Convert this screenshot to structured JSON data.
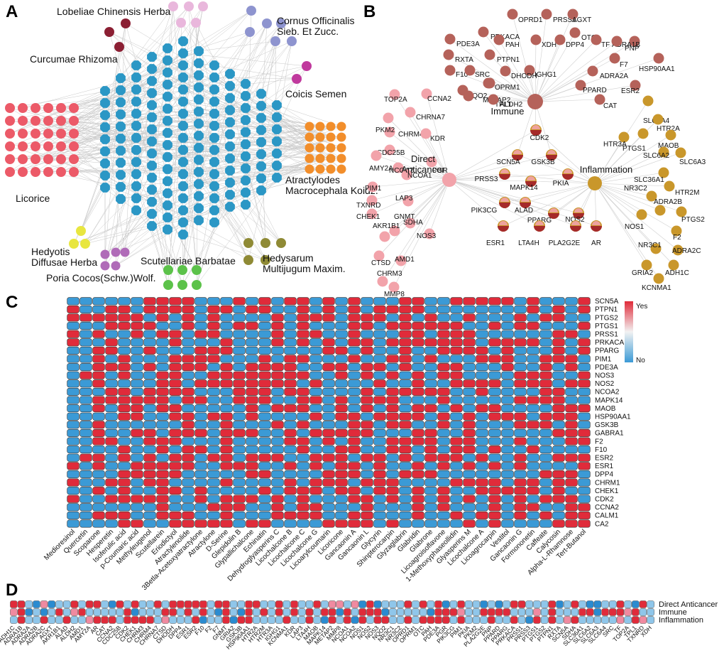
{
  "panels": {
    "A": "A",
    "B": "B",
    "C": "C",
    "D": "D"
  },
  "panelA": {
    "herbs": [
      {
        "key": "licorice",
        "label_lines": [
          "Licorice"
        ],
        "color": "#ec5a68"
      },
      {
        "key": "curcumae",
        "label_lines": [
          "Curcumae Rhizoma"
        ],
        "color": "#8b1f33"
      },
      {
        "key": "lobeliae",
        "label_lines": [
          "Lobeliae Chinensis Herba"
        ],
        "color": "#e9b7dc"
      },
      {
        "key": "cornus",
        "label_lines": [
          "Cornus Officinalis",
          "Sieb. Et Zucc."
        ],
        "color": "#8e94cf"
      },
      {
        "key": "coicis",
        "label_lines": [
          "Coicis Semen"
        ],
        "color": "#c0399d"
      },
      {
        "key": "atractylodes",
        "label_lines": [
          "Atractylodes",
          "Macrocephala Koidz."
        ],
        "color": "#f28e2b"
      },
      {
        "key": "hedysarum",
        "label_lines": [
          "Hedysarum",
          "Multijugum Maxim."
        ],
        "color": "#8f8a35"
      },
      {
        "key": "scutellariae",
        "label_lines": [
          "Scutellariae Barbatae"
        ],
        "color": "#5cc24a"
      },
      {
        "key": "poria",
        "label_lines": [
          "Poria Cocos(Schw.)Wolf."
        ],
        "color": "#b06bb8"
      },
      {
        "key": "hedyotis",
        "label_lines": [
          "Hedyotis",
          "Diffusae Herba"
        ],
        "color": "#e8e640"
      }
    ],
    "compound_color": "#2b97c5"
  },
  "panelB": {
    "immune": {
      "label": "Immune",
      "color": "#b5625a",
      "targets": [
        "OPRD1",
        "PRSS1",
        "AGXT",
        "PRKACA",
        "PDE3A",
        "OTC",
        "PAH",
        "XDH",
        "DPP4",
        "TF",
        "RXTA",
        "PTPN1",
        "ADRA1B",
        "F10",
        "PNP",
        "F7",
        "IGHG1",
        "OPRM1",
        "DHODH",
        "SRC",
        "NQO2",
        "TPL1",
        "ADRA2A",
        "PPARD",
        "ESR2",
        "HSP90AA1",
        "METAP2",
        "ALDH2",
        "CAT"
      ]
    },
    "anticancer": {
      "label_lines": [
        "Direct",
        "Anticancer"
      ],
      "color": "#f2a3aa",
      "targets": [
        "TOP2A",
        "CCNA2",
        "CHRNA7",
        "CHRM4",
        "PKM2",
        "KDR",
        "CDC25B",
        "NCOA2",
        "NCOA1",
        "PGR",
        "AMY2A",
        "PIM1",
        "TXNRD",
        "LAP3",
        "CHEK1",
        "GNMT",
        "SDHA",
        "AKR1B1",
        "NOS3",
        "CTSD",
        "AMD1",
        "CHRM3",
        "MMP8"
      ]
    },
    "inflammation": {
      "label": "Inflammation",
      "color": "#c9972b",
      "targets": [
        "SLC6A4",
        "HTR2A",
        "PTGS1",
        "MAOB",
        "HTR3A",
        "SLC6A2",
        "SLC6A3",
        "SLC36A1",
        "HTR2M",
        "NR3C2",
        "ADRA2B",
        "PTGS2",
        "NOS1",
        "F2",
        "NR3C1",
        "ADRA2C",
        "GRIA2",
        "ADH1C",
        "KCNMA1"
      ]
    },
    "shared": [
      "CDK2",
      "SCN5A",
      "GSK3B",
      "PRSS3",
      "MAPK14",
      "PKIA",
      "PIK3CG",
      "ALAD",
      "PPARG",
      "NOS2",
      "ESR1",
      "LTA4H",
      "PLA2G2E",
      "AR"
    ]
  },
  "panelC": {
    "rows": [
      "SCN5A",
      "PTPN1",
      "PTGS2",
      "PTGS1",
      "PRSS1",
      "PRKACA",
      "PPARG",
      "PIM1",
      "PDE3A",
      "NOS3",
      "NOS2",
      "NCOA2",
      "MAPK14",
      "MAOB",
      "HSP90AA1",
      "GSK3B",
      "GABRA1",
      "F2",
      "F10",
      "ESR2",
      "ESR1",
      "DPP4",
      "CHRM1",
      "CHEK1",
      "CDK2",
      "CCNA2",
      "CALM1",
      "CA2"
    ],
    "cols": [
      "Medioresinol",
      "Quercetin",
      "Scoparone",
      "Hesperetin",
      "Isoferulic acid",
      "p-Coumaric acid",
      "Methyleugenol",
      "Scutellarein",
      "Eriodictyol",
      "Atractylenolide",
      "3Betla-Acetoxyatractylone",
      "Atractylone",
      "D-Serine",
      "Glepidolin B",
      "Glypallichalcone",
      "Echinatin",
      "Dehydroglyasperins C",
      "Licochalcone B",
      "Licochalcone C",
      "Licochalcone G",
      "Licoarylcoumarin",
      "Licoricone",
      "Gancaonin A",
      "Gancaonin L",
      "Glycyrin",
      "Shinpterocarpin",
      "Glyzaglabrin",
      "Glabridin",
      "Glabrone",
      "Licoagroisoflavone",
      "1-Methoxyphaseollidin",
      "Glyasperins M",
      "Licochalcone A",
      "Licoagrocarpin",
      "Vestitol",
      "Gancaonin G",
      "Formononetin",
      "Caffeate",
      "Calycosin",
      "Alpha-L-Rhamnose",
      "Tert-Butanol"
    ],
    "legend": {
      "yes": "Yes",
      "no": "No",
      "yes_color": "#e02b3a",
      "no_color": "#3b9ad6"
    }
  },
  "panelD": {
    "rows": [
      "Direct Anticancer",
      "Immune",
      "Inflammation"
    ],
    "cols": [
      "ADH1C",
      "ADRA1B",
      "ADRA2A",
      "ADRA2B",
      "ADRA2C",
      "AGXT",
      "AKR1B1",
      "ALAD",
      "ALDH2",
      "AMD1",
      "AMY2A",
      "AR",
      "CAT",
      "CCNA2",
      "CDC25B",
      "CDK2",
      "CHEK1",
      "CHRM3",
      "CHRM4",
      "CHRNA7",
      "CTSD",
      "DHODH",
      "DPP4",
      "ESR1",
      "ESR2",
      "F10",
      "F2",
      "F7",
      "GNMT",
      "GRIA2",
      "GSK3B",
      "HSP90AA1",
      "HTR2A",
      "HTR2M",
      "HTR3A",
      "IGHG1",
      "KCNMA1",
      "KDR",
      "LAP3",
      "LTA4H",
      "MAOB",
      "MAPK14",
      "METAP2",
      "MMP8",
      "NCOA1",
      "NCOA2",
      "NOS1",
      "NOS2",
      "NOS3",
      "NQO2",
      "NR3C1",
      "NR3C2",
      "OPRD1",
      "OPRM1",
      "OTC",
      "PAH",
      "PDE3A",
      "PGR",
      "PIK3CG",
      "PIM1",
      "PKIA",
      "PKM2",
      "PLA2G2E",
      "PNP",
      "PPARD",
      "PPARG",
      "PRKACA",
      "PRSS1",
      "PRSS3",
      "PTGS1",
      "PTGS2",
      "PTPN1",
      "RXTA",
      "SCN5A",
      "SDHA",
      "SLC36A1",
      "SLC6A2",
      "SLC6A3",
      "SLC6A4",
      "SRC",
      "TF",
      "TOP2A",
      "TPL1",
      "TXNRD",
      "XDH"
    ]
  }
}
